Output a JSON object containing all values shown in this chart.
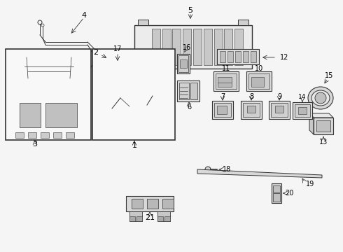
{
  "bg_color": "#f5f5f5",
  "line_color": "#333333",
  "text_color": "#000000",
  "figsize": [
    4.9,
    3.6
  ],
  "dpi": 100
}
